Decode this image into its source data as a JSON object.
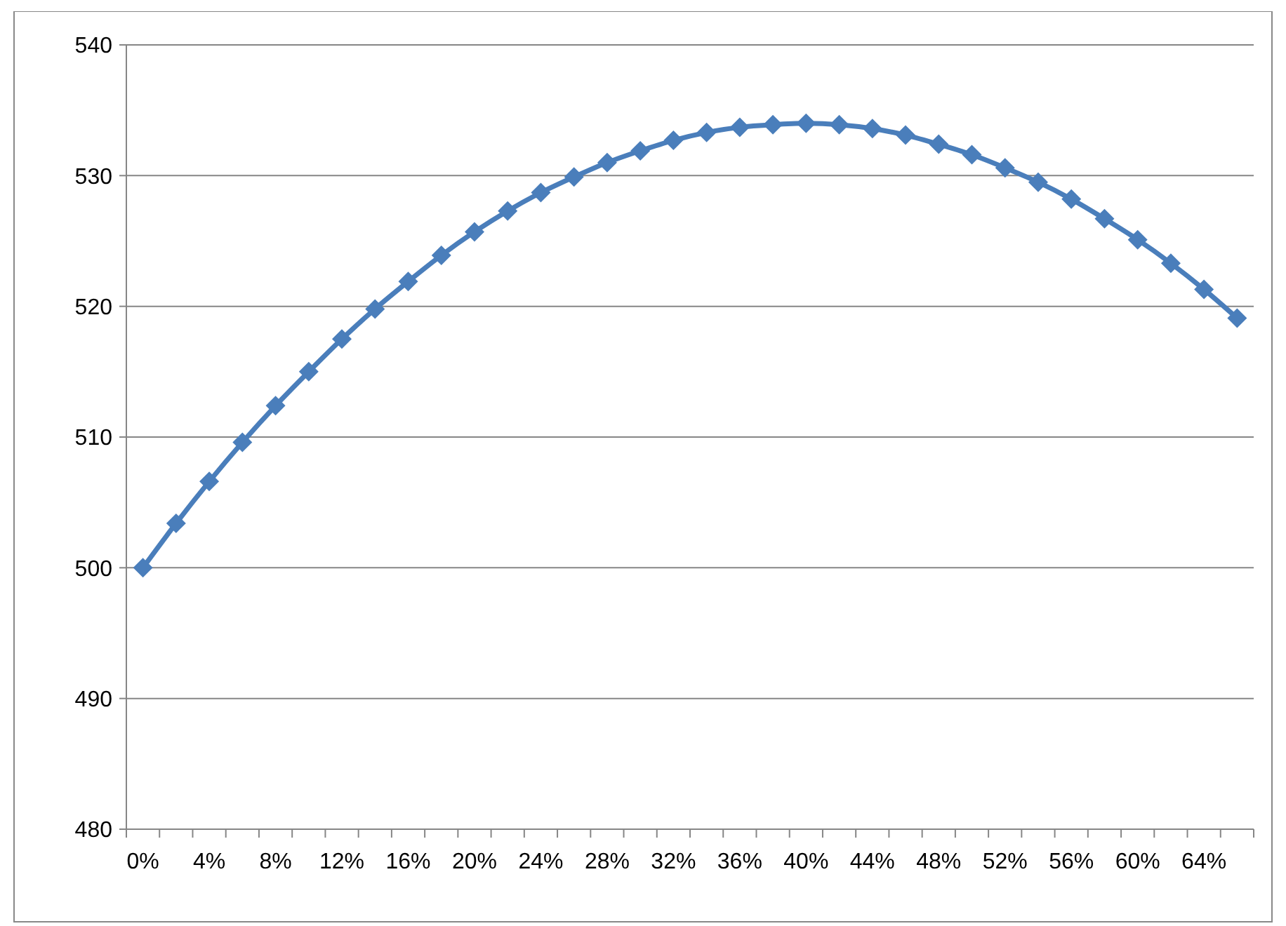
{
  "chart_data": {
    "type": "line",
    "categories": [
      "0%",
      null,
      "4%",
      null,
      "8%",
      null,
      "12%",
      null,
      "16%",
      null,
      "20%",
      null,
      "24%",
      null,
      "28%",
      null,
      "32%",
      null,
      "36%",
      null,
      "40%",
      null,
      "44%",
      null,
      "48%",
      null,
      "52%",
      null,
      "56%",
      null,
      "60%",
      null,
      "64%",
      null
    ],
    "series": [
      {
        "color": "#4a7ebb",
        "values": [
          500,
          503.4,
          506.6,
          509.6,
          512.4,
          515.0,
          517.5,
          519.8,
          521.9,
          523.9,
          525.7,
          527.3,
          528.7,
          529.9,
          531.0,
          531.9,
          532.7,
          533.3,
          533.7,
          533.9,
          534.0,
          533.9,
          533.6,
          533.1,
          532.4,
          531.6,
          530.6,
          529.5,
          528.2,
          526.7,
          525.1,
          523.3,
          521.3,
          519.1
        ]
      }
    ],
    "ylim": [
      480,
      540
    ],
    "yticks": [
      480,
      490,
      500,
      510,
      520,
      530,
      540
    ],
    "grid": "y",
    "marker": "diamond",
    "line_style": "solid"
  }
}
